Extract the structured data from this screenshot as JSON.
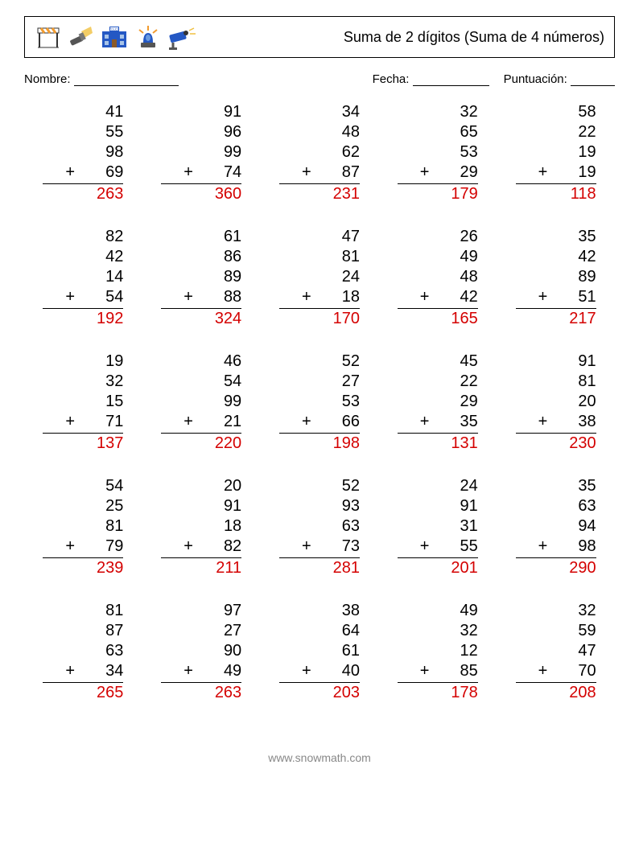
{
  "title": "Suma de 2 dígitos (Suma de 4 números)",
  "labels": {
    "name": "Nombre:",
    "date": "Fecha:",
    "score": "Puntuación:"
  },
  "colors": {
    "answer": "#d40000",
    "text": "#000000",
    "footer": "#9a9a9a",
    "icon_blue": "#2458c4",
    "icon_orange": "#f29b2e",
    "icon_gray": "#555555",
    "icon_dark": "#333333",
    "icon_yellow": "#f0c040"
  },
  "footer": "www.snowmath.com",
  "operator": "+",
  "problems": [
    [
      {
        "nums": [
          41,
          55,
          98,
          69
        ],
        "ans": 263
      },
      {
        "nums": [
          91,
          96,
          99,
          74
        ],
        "ans": 360
      },
      {
        "nums": [
          34,
          48,
          62,
          87
        ],
        "ans": 231
      },
      {
        "nums": [
          32,
          65,
          53,
          29
        ],
        "ans": 179
      },
      {
        "nums": [
          58,
          22,
          19,
          19
        ],
        "ans": 118
      }
    ],
    [
      {
        "nums": [
          82,
          42,
          14,
          54
        ],
        "ans": 192
      },
      {
        "nums": [
          61,
          86,
          89,
          88
        ],
        "ans": 324
      },
      {
        "nums": [
          47,
          81,
          24,
          18
        ],
        "ans": 170
      },
      {
        "nums": [
          26,
          49,
          48,
          42
        ],
        "ans": 165
      },
      {
        "nums": [
          35,
          42,
          89,
          51
        ],
        "ans": 217
      }
    ],
    [
      {
        "nums": [
          19,
          32,
          15,
          71
        ],
        "ans": 137
      },
      {
        "nums": [
          46,
          54,
          99,
          21
        ],
        "ans": 220
      },
      {
        "nums": [
          52,
          27,
          53,
          66
        ],
        "ans": 198
      },
      {
        "nums": [
          45,
          22,
          29,
          35
        ],
        "ans": 131
      },
      {
        "nums": [
          91,
          81,
          20,
          38
        ],
        "ans": 230
      }
    ],
    [
      {
        "nums": [
          54,
          25,
          81,
          79
        ],
        "ans": 239
      },
      {
        "nums": [
          20,
          91,
          18,
          82
        ],
        "ans": 211
      },
      {
        "nums": [
          52,
          93,
          63,
          73
        ],
        "ans": 281
      },
      {
        "nums": [
          24,
          91,
          31,
          55
        ],
        "ans": 201
      },
      {
        "nums": [
          35,
          63,
          94,
          98
        ],
        "ans": 290
      }
    ],
    [
      {
        "nums": [
          81,
          87,
          63,
          34
        ],
        "ans": 265
      },
      {
        "nums": [
          97,
          27,
          90,
          49
        ],
        "ans": 263
      },
      {
        "nums": [
          38,
          64,
          61,
          40
        ],
        "ans": 203
      },
      {
        "nums": [
          49,
          32,
          12,
          85
        ],
        "ans": 178
      },
      {
        "nums": [
          32,
          59,
          47,
          70
        ],
        "ans": 208
      }
    ]
  ]
}
